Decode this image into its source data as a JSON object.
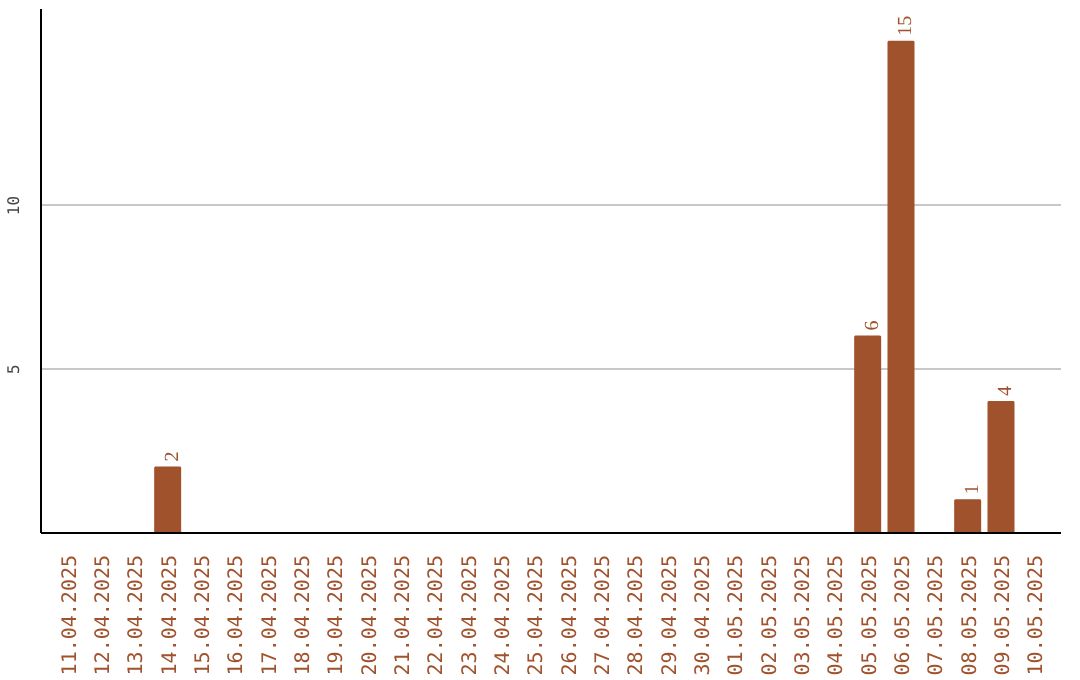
{
  "chart_data": {
    "type": "bar",
    "categories": [
      "11.04.2025",
      "12.04.2025",
      "13.04.2025",
      "14.04.2025",
      "15.04.2025",
      "16.04.2025",
      "17.04.2025",
      "18.04.2025",
      "19.04.2025",
      "20.04.2025",
      "21.04.2025",
      "22.04.2025",
      "23.04.2025",
      "24.04.2025",
      "25.04.2025",
      "26.04.2025",
      "27.04.2025",
      "28.04.2025",
      "29.04.2025",
      "30.04.2025",
      "01.05.2025",
      "02.05.2025",
      "03.05.2025",
      "04.05.2025",
      "05.05.2025",
      "06.05.2025",
      "07.05.2025",
      "08.05.2025",
      "09.05.2025",
      "10.05.2025"
    ],
    "values": [
      null,
      null,
      null,
      2,
      null,
      null,
      null,
      null,
      null,
      null,
      null,
      null,
      null,
      null,
      null,
      null,
      null,
      null,
      null,
      null,
      null,
      null,
      null,
      null,
      6,
      15,
      null,
      1,
      4,
      null
    ],
    "value_labels": [
      null,
      null,
      null,
      "2",
      null,
      null,
      null,
      null,
      null,
      null,
      null,
      null,
      null,
      null,
      null,
      null,
      null,
      null,
      null,
      null,
      null,
      null,
      null,
      null,
      "6",
      "15",
      null,
      "1",
      "4",
      null
    ],
    "color": "#a0522d",
    "ylim": [
      0,
      16
    ],
    "yticks": [
      5,
      10
    ],
    "grid": "y"
  }
}
